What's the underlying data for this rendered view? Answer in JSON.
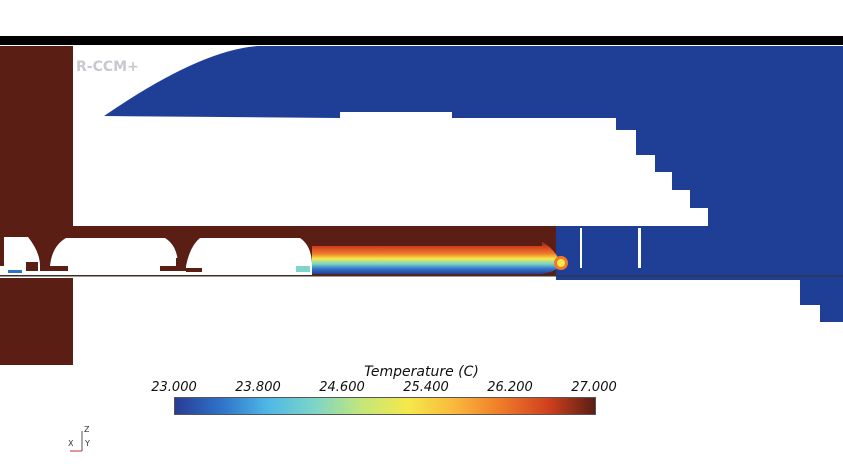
{
  "viewer": {
    "brand": "R-CCM+",
    "colors": {
      "solid_brown": "#5a1e14",
      "cold_blue": "#1f3f96",
      "background": "#ffffff",
      "frame": "#000000"
    }
  },
  "legend": {
    "title": "Temperature (C)",
    "ticks": [
      "23.000",
      "23.800",
      "24.600",
      "25.400",
      "26.200",
      "27.000"
    ],
    "gradient": [
      "#2a3c96",
      "#2f73c8",
      "#4fb8e6",
      "#7ed5c8",
      "#c4e67a",
      "#f5e84a",
      "#f8b83c",
      "#ef7a2a",
      "#d0401f",
      "#5a1e14"
    ]
  },
  "axes": {
    "z_label": "Z",
    "y_label": "Y",
    "x_label": "X"
  }
}
